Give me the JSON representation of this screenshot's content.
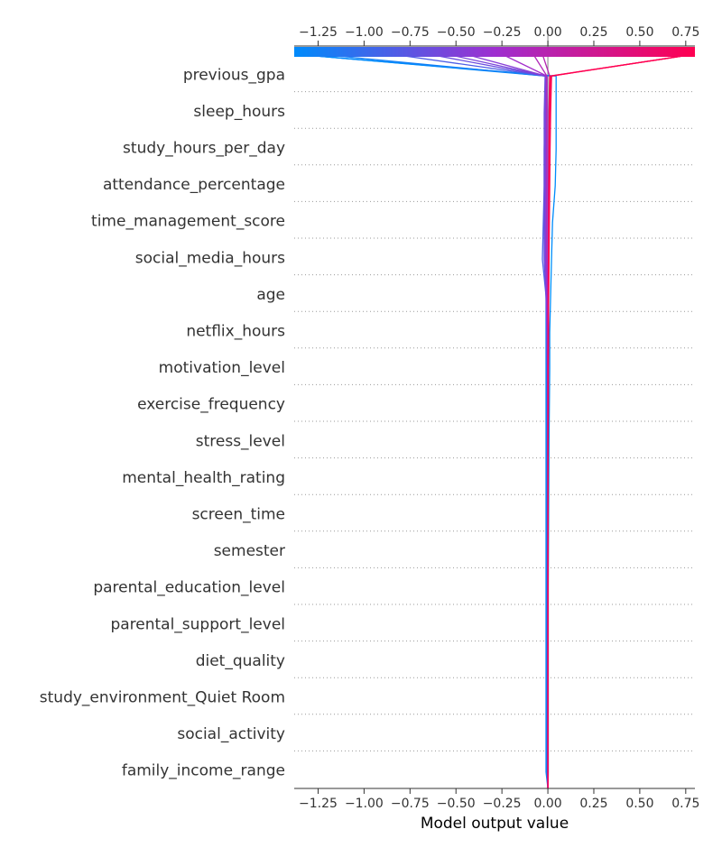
{
  "chart_data": {
    "type": "line",
    "subtype": "shap-decision-plot",
    "xlabel": "Model output value",
    "xlim": [
      -1.38,
      0.8
    ],
    "x_ticks": [
      -1.25,
      -1.0,
      -0.75,
      -0.5,
      -0.25,
      0.0,
      0.25,
      0.5,
      0.75
    ],
    "x_tick_labels": [
      "−1.25",
      "−1.00",
      "−0.75",
      "−0.50",
      "−0.25",
      "0.00",
      "0.25",
      "0.50",
      "0.75"
    ],
    "base_value": 0.0,
    "grid": "dotted-horizontal",
    "colormap": {
      "low": "#008bfb",
      "mid": "#9e2fd0",
      "high": "#ff0051"
    },
    "features": [
      "previous_gpa",
      "sleep_hours",
      "study_hours_per_day",
      "attendance_percentage",
      "time_management_score",
      "social_media_hours",
      "age",
      "netflix_hours",
      "motivation_level",
      "exercise_frequency",
      "stress_level",
      "mental_health_rating",
      "screen_time",
      "semester",
      "parental_education_level",
      "parental_support_level",
      "diet_quality",
      "study_environment_Quiet Room",
      "social_activity",
      "family_income_range"
    ],
    "series": [
      {
        "final": -1.38,
        "points": [
          -0.005,
          -0.005,
          -0.005,
          -0.005,
          -0.005,
          -0.005,
          -0.005,
          -0.005,
          -0.005,
          -0.005,
          -0.005,
          -0.005,
          -0.005,
          -0.005,
          -0.005,
          -0.005,
          -0.005,
          -0.005,
          -0.005,
          -0.005
        ]
      },
      {
        "final": -1.38,
        "points": [
          0.02,
          0.01,
          0.005,
          0.004,
          0.004,
          0.003,
          0.002,
          0.002,
          0.002,
          0.002,
          0.001,
          0.001,
          0.001,
          0.001,
          0.001,
          0.001,
          0.001,
          0.001,
          0.001,
          0.001
        ]
      },
      {
        "final": -1.38,
        "points": [
          0.045,
          0.045,
          0.045,
          0.04,
          0.025,
          0.02,
          0.015,
          0.01,
          0.01,
          0.008,
          0.006,
          0.005,
          0.004,
          0.003,
          0.002,
          0.002,
          0.002,
          0.002,
          0.002,
          0.002
        ]
      },
      {
        "final": -1.25,
        "points": [
          -0.01,
          -0.01,
          -0.01,
          -0.01,
          -0.01,
          -0.01,
          -0.01,
          -0.01,
          -0.01,
          -0.01,
          -0.01,
          -0.01,
          -0.01,
          -0.01,
          -0.01,
          -0.01,
          -0.01,
          -0.01,
          -0.01,
          -0.01
        ]
      },
      {
        "final": -0.85,
        "points": [
          -0.01,
          -0.015,
          -0.02,
          -0.02,
          -0.025,
          -0.03,
          -0.01,
          0.0,
          0.0,
          0.0,
          0.0,
          0.0,
          0.0,
          0.0,
          0.0,
          0.0,
          0.0,
          0.0,
          0.0,
          0.0
        ]
      },
      {
        "final": -0.65,
        "points": [
          -0.015,
          -0.02,
          -0.02,
          -0.02,
          -0.02,
          -0.02,
          -0.01,
          -0.005,
          -0.003,
          -0.002,
          -0.001,
          0.0,
          0.0,
          0.0,
          0.0,
          0.0,
          0.0,
          0.0,
          0.0,
          0.0
        ]
      },
      {
        "final": -0.55,
        "points": [
          -0.01,
          -0.015,
          -0.015,
          -0.015,
          -0.015,
          -0.015,
          -0.008,
          -0.004,
          -0.002,
          -0.001,
          0.0,
          0.0,
          0.0,
          0.0,
          0.0,
          0.0,
          0.0,
          0.0,
          0.0,
          0.0
        ]
      },
      {
        "final": -0.45,
        "points": [
          -0.01,
          -0.01,
          -0.01,
          -0.01,
          -0.01,
          -0.01,
          -0.005,
          -0.003,
          -0.002,
          -0.001,
          0.0,
          0.0,
          0.0,
          0.0,
          0.0,
          0.0,
          0.0,
          0.0,
          0.0,
          0.0
        ]
      },
      {
        "final": -0.25,
        "points": [
          -0.005,
          -0.005,
          -0.005,
          -0.005,
          -0.005,
          -0.005,
          -0.003,
          -0.002,
          -0.001,
          0.0,
          0.0,
          0.0,
          0.0,
          0.0,
          0.0,
          0.0,
          0.0,
          0.0,
          0.0,
          0.0
        ]
      },
      {
        "final": -0.08,
        "points": [
          -0.005,
          -0.005,
          -0.005,
          -0.005,
          -0.005,
          -0.005,
          -0.003,
          -0.002,
          -0.001,
          0.0,
          0.0,
          0.0,
          0.0,
          0.0,
          0.0,
          0.0,
          0.0,
          0.0,
          0.0,
          0.0
        ]
      },
      {
        "final": -0.03,
        "points": [
          0.01,
          0.005,
          0.004,
          0.003,
          0.003,
          0.002,
          0.002,
          0.001,
          0.001,
          0.0,
          0.0,
          0.0,
          0.0,
          0.0,
          0.0,
          0.0,
          0.0,
          0.0,
          0.0,
          0.0
        ]
      },
      {
        "final": 0.8,
        "points": [
          0.02,
          0.015,
          0.012,
          0.01,
          0.008,
          0.006,
          0.004,
          0.003,
          0.002,
          0.002,
          0.001,
          0.001,
          0.001,
          0.0,
          0.0,
          0.0,
          0.0,
          0.0,
          0.0,
          0.0
        ]
      },
      {
        "final": 0.8,
        "points": [
          0.015,
          0.012,
          0.01,
          0.008,
          0.006,
          0.005,
          0.004,
          0.003,
          0.002,
          0.002,
          0.001,
          0.001,
          0.001,
          0.0,
          0.0,
          0.0,
          0.0,
          0.0,
          0.0,
          0.0
        ]
      },
      {
        "final": 0.8,
        "points": [
          0.01,
          0.008,
          0.006,
          0.005,
          0.004,
          0.003,
          0.002,
          0.002,
          0.001,
          0.001,
          0.0,
          0.0,
          0.0,
          0.0,
          0.0,
          0.0,
          0.0,
          0.0,
          0.0,
          0.0
        ]
      }
    ]
  }
}
